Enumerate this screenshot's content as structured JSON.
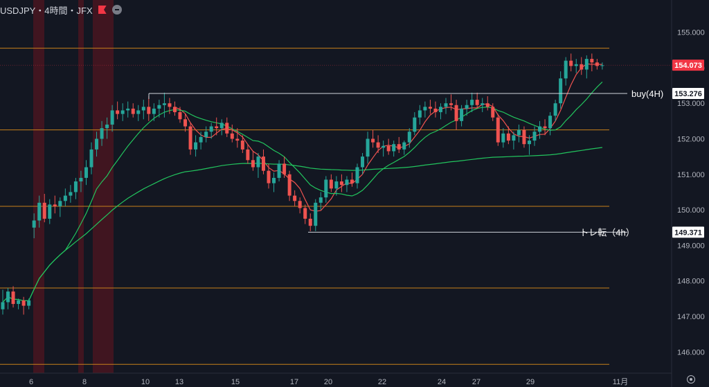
{
  "header": {
    "symbol_title": "USDJPY・4時間・JFX",
    "flag_icon": "flag-icon",
    "collapse_icon": "minus-circle-icon"
  },
  "chart_data": {
    "type": "candlestick",
    "ylim": [
      145.6,
      156.1
    ],
    "x_tick_labels": [
      "6",
      "8",
      "10",
      "13",
      "15",
      "17",
      "20",
      "22",
      "24",
      "27",
      "29",
      "11月"
    ],
    "y_tick_labels": [
      "156.000",
      "155.000",
      "154.000",
      "153.000",
      "152.000",
      "151.000",
      "150.000",
      "149.000",
      "148.000",
      "147.000",
      "146.000"
    ],
    "y_ticks": [
      156,
      155,
      154,
      153,
      152,
      151,
      150,
      149,
      148,
      147,
      146
    ],
    "current_price": {
      "label": "154.073",
      "value": 154.073,
      "color": "#f23645"
    },
    "horizontal_levels": [
      154.55,
      152.25,
      150.1,
      147.8,
      145.65
    ],
    "annotations": [
      {
        "text": "buy(4H)",
        "price_label": "153.276",
        "value": 153.276
      },
      {
        "text": "トレ転（4h）",
        "price_label": "149.371",
        "value": 149.371
      }
    ],
    "candles_ohlc": [
      [
        147.2,
        147.75,
        147.05,
        147.4
      ],
      [
        147.4,
        147.8,
        147.2,
        147.7
      ],
      [
        147.7,
        147.85,
        147.25,
        147.35
      ],
      [
        147.35,
        147.5,
        147.2,
        147.45
      ],
      [
        147.45,
        147.55,
        147.05,
        147.3
      ],
      [
        147.3,
        147.5,
        147.2,
        147.45
      ],
      [
        149.5,
        149.9,
        149.2,
        149.7
      ],
      [
        149.7,
        150.4,
        149.5,
        150.2
      ],
      [
        150.2,
        150.45,
        149.65,
        149.75
      ],
      [
        149.75,
        150.3,
        149.6,
        150.15
      ],
      [
        150.15,
        150.4,
        149.9,
        150.1
      ],
      [
        150.1,
        150.35,
        149.8,
        150.25
      ],
      [
        150.25,
        150.6,
        150.1,
        150.4
      ],
      [
        150.4,
        150.7,
        150.2,
        150.5
      ],
      [
        150.5,
        150.9,
        150.3,
        150.8
      ],
      [
        150.8,
        151.1,
        150.5,
        150.9
      ],
      [
        150.9,
        151.4,
        150.7,
        151.2
      ],
      [
        151.2,
        151.9,
        151.0,
        151.7
      ],
      [
        151.7,
        152.2,
        151.5,
        152.0
      ],
      [
        152.0,
        152.5,
        151.8,
        152.3
      ],
      [
        152.3,
        152.6,
        152.0,
        152.4
      ],
      [
        152.4,
        152.95,
        152.2,
        152.8
      ],
      [
        152.8,
        153.05,
        152.55,
        152.7
      ],
      [
        152.7,
        153.0,
        152.5,
        152.8
      ],
      [
        152.8,
        153.05,
        152.6,
        152.85
      ],
      [
        152.85,
        153.0,
        152.6,
        152.7
      ],
      [
        152.7,
        152.95,
        152.5,
        152.8
      ],
      [
        152.8,
        153.1,
        152.55,
        152.9
      ],
      [
        152.9,
        153.2,
        152.5,
        152.7
      ],
      [
        152.7,
        153.0,
        152.5,
        152.85
      ],
      [
        152.85,
        153.1,
        152.6,
        152.95
      ],
      [
        152.95,
        153.3,
        152.6,
        153.0
      ],
      [
        153.0,
        153.15,
        152.7,
        152.9
      ],
      [
        152.9,
        153.05,
        152.65,
        152.75
      ],
      [
        152.75,
        152.9,
        152.45,
        152.55
      ],
      [
        152.55,
        152.7,
        152.2,
        152.35
      ],
      [
        152.35,
        152.45,
        151.55,
        151.7
      ],
      [
        151.7,
        152.1,
        151.5,
        151.9
      ],
      [
        151.9,
        152.2,
        151.7,
        152.05
      ],
      [
        152.05,
        152.35,
        151.9,
        152.2
      ],
      [
        152.2,
        152.45,
        152.0,
        152.35
      ],
      [
        152.35,
        152.6,
        152.1,
        152.3
      ],
      [
        152.3,
        152.55,
        152.1,
        152.45
      ],
      [
        152.45,
        152.6,
        152.05,
        152.15
      ],
      [
        152.15,
        152.4,
        151.9,
        152.0
      ],
      [
        152.0,
        152.3,
        151.75,
        151.95
      ],
      [
        151.95,
        152.1,
        151.6,
        151.7
      ],
      [
        151.7,
        151.85,
        151.3,
        151.4
      ],
      [
        151.4,
        151.65,
        151.1,
        151.2
      ],
      [
        151.2,
        151.6,
        150.9,
        151.5
      ],
      [
        151.5,
        151.7,
        151.0,
        151.1
      ],
      [
        151.1,
        151.3,
        150.6,
        150.75
      ],
      [
        150.75,
        151.05,
        150.5,
        150.9
      ],
      [
        150.9,
        151.4,
        150.8,
        151.3
      ],
      [
        151.3,
        151.5,
        150.9,
        151.0
      ],
      [
        151.0,
        151.1,
        150.25,
        150.4
      ],
      [
        150.4,
        150.55,
        150.1,
        150.25
      ],
      [
        150.25,
        150.35,
        149.9,
        150.05
      ],
      [
        150.05,
        150.15,
        149.6,
        149.75
      ],
      [
        149.75,
        149.9,
        149.4,
        149.55
      ],
      [
        149.55,
        150.3,
        149.4,
        150.2
      ],
      [
        150.2,
        150.5,
        150.0,
        150.35
      ],
      [
        150.35,
        150.95,
        150.2,
        150.85
      ],
      [
        150.85,
        151.0,
        150.5,
        150.6
      ],
      [
        150.6,
        150.95,
        150.4,
        150.8
      ],
      [
        150.8,
        151.0,
        150.5,
        150.7
      ],
      [
        150.7,
        150.95,
        150.5,
        150.85
      ],
      [
        150.85,
        151.05,
        150.65,
        150.75
      ],
      [
        150.75,
        151.3,
        150.6,
        151.2
      ],
      [
        151.2,
        151.6,
        151.0,
        151.5
      ],
      [
        151.5,
        152.2,
        151.3,
        152.0
      ],
      [
        152.0,
        152.25,
        151.75,
        151.9
      ],
      [
        151.9,
        152.1,
        151.6,
        151.75
      ],
      [
        151.75,
        151.95,
        151.5,
        151.8
      ],
      [
        151.8,
        152.0,
        151.55,
        151.65
      ],
      [
        151.65,
        151.95,
        151.5,
        151.85
      ],
      [
        151.85,
        152.05,
        151.6,
        151.7
      ],
      [
        151.7,
        151.95,
        151.55,
        151.9
      ],
      [
        151.9,
        152.3,
        151.75,
        152.2
      ],
      [
        152.2,
        152.75,
        152.1,
        152.6
      ],
      [
        152.6,
        152.95,
        152.4,
        152.8
      ],
      [
        152.8,
        153.05,
        152.6,
        152.9
      ],
      [
        152.9,
        153.1,
        152.7,
        152.85
      ],
      [
        152.85,
        153.05,
        152.6,
        152.75
      ],
      [
        152.75,
        153.0,
        152.55,
        152.9
      ],
      [
        152.9,
        153.15,
        152.7,
        153.0
      ],
      [
        153.0,
        153.25,
        152.8,
        152.95
      ],
      [
        152.95,
        153.1,
        152.25,
        152.5
      ],
      [
        152.5,
        152.95,
        152.35,
        152.85
      ],
      [
        152.85,
        153.1,
        152.65,
        152.95
      ],
      [
        152.95,
        153.3,
        152.75,
        153.1
      ],
      [
        153.1,
        153.3,
        152.85,
        152.95
      ],
      [
        152.95,
        153.15,
        152.75,
        153.0
      ],
      [
        153.0,
        153.2,
        152.8,
        152.9
      ],
      [
        152.9,
        153.0,
        152.5,
        152.6
      ],
      [
        152.6,
        152.7,
        151.8,
        151.9
      ],
      [
        151.9,
        152.3,
        151.75,
        152.15
      ],
      [
        152.15,
        152.35,
        151.85,
        151.95
      ],
      [
        151.95,
        152.2,
        151.7,
        152.1
      ],
      [
        152.1,
        152.4,
        151.9,
        152.25
      ],
      [
        152.25,
        152.35,
        151.75,
        151.85
      ],
      [
        151.85,
        152.1,
        151.55,
        151.95
      ],
      [
        151.95,
        152.35,
        151.8,
        152.2
      ],
      [
        152.2,
        152.5,
        152.0,
        152.35
      ],
      [
        152.35,
        152.55,
        152.1,
        152.3
      ],
      [
        152.3,
        152.75,
        152.1,
        152.65
      ],
      [
        152.65,
        153.1,
        152.5,
        153.0
      ],
      [
        153.0,
        153.9,
        152.85,
        153.7
      ],
      [
        153.7,
        154.3,
        153.5,
        154.2
      ],
      [
        154.2,
        154.4,
        153.9,
        154.05
      ],
      [
        154.05,
        154.25,
        153.85,
        154.1
      ],
      [
        154.1,
        154.3,
        153.8,
        153.95
      ],
      [
        153.95,
        154.35,
        153.7,
        154.25
      ],
      [
        154.25,
        154.4,
        153.9,
        154.15
      ],
      [
        154.15,
        154.25,
        153.95,
        154.05
      ],
      [
        154.05,
        154.15,
        153.95,
        154.07
      ]
    ]
  }
}
